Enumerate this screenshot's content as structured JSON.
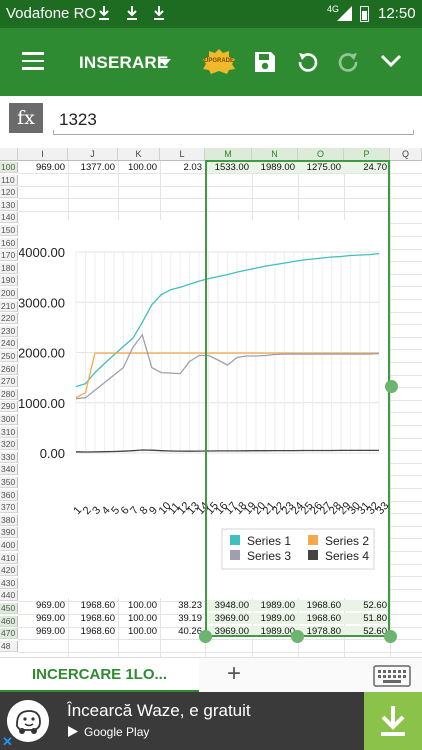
{
  "status_bar": {
    "carrier": "Vodafone RO",
    "network": "4G",
    "time": "12:50"
  },
  "toolbar": {
    "mode_label": "INSERARE",
    "upgrade_label": "UPGRADE"
  },
  "formula_bar": {
    "fx_label": "fx",
    "value": "1323"
  },
  "grid": {
    "columns": [
      "I",
      "J",
      "K",
      "L",
      "M",
      "N",
      "O",
      "P",
      "Q"
    ],
    "rows": [
      "100",
      "110",
      "120",
      "130",
      "140",
      "150",
      "160",
      "170",
      "180",
      "190",
      "200",
      "210",
      "220",
      "230",
      "240",
      "250",
      "260",
      "270",
      "280",
      "290",
      "300",
      "310",
      "320",
      "330",
      "340",
      "350",
      "360",
      "370",
      "380",
      "390",
      "400",
      "410",
      "420",
      "430",
      "440",
      "450",
      "460",
      "470",
      "48"
    ],
    "data_rows": {
      "r100": [
        "969.00",
        "1377.00",
        "100.00",
        "2.03",
        "1533.00",
        "1989.00",
        "1275.00",
        "24.70"
      ],
      "r450": [
        "969.00",
        "1968.60",
        "100.00",
        "38.23",
        "3948.00",
        "1989.00",
        "1968.60",
        "52.60"
      ],
      "r460": [
        "969.00",
        "1968.60",
        "100.00",
        "39.19",
        "3969.00",
        "1989.00",
        "1968.60",
        "51.80"
      ],
      "r470": [
        "969.00",
        "1968.60",
        "100.00",
        "40.26",
        "3969.00",
        "1989.00",
        "1978.80",
        "52.60"
      ]
    }
  },
  "chart_data": {
    "type": "line",
    "y_ticks": [
      "4000.00",
      "3000.00",
      "2000.00",
      "1000.00",
      "0.00"
    ],
    "ylim": [
      0,
      4000
    ],
    "grid": true,
    "legend_position": "bottom-right",
    "x": [
      1,
      2,
      3,
      4,
      5,
      6,
      7,
      8,
      9,
      10,
      11,
      12,
      13,
      14,
      15,
      16,
      17,
      18,
      19,
      20,
      21,
      22,
      23,
      24,
      25,
      26,
      27,
      28,
      29,
      30,
      31,
      32,
      33
    ],
    "x_labels": [
      "1",
      "2",
      "3",
      "4",
      "5",
      "6",
      "7",
      "8",
      "9",
      "10",
      "11",
      "12",
      "13",
      "14",
      "15",
      "16",
      "17",
      "18",
      "19",
      "20",
      "21",
      "22",
      "23",
      "24",
      "25",
      "26",
      "27",
      "28",
      "29",
      "30",
      "31",
      "32",
      "33"
    ],
    "series": [
      {
        "name": "Series 1",
        "color": "#40bfbf",
        "values": [
          1323,
          1380,
          1600,
          1780,
          1950,
          2120,
          2280,
          2600,
          2950,
          3150,
          3250,
          3300,
          3360,
          3420,
          3470,
          3510,
          3550,
          3600,
          3640,
          3680,
          3720,
          3750,
          3780,
          3810,
          3840,
          3860,
          3880,
          3900,
          3910,
          3930,
          3940,
          3948,
          3969
        ]
      },
      {
        "name": "Series 2",
        "color": "#f5a94a",
        "values": [
          1100,
          1200,
          1989,
          1989,
          1989,
          1989,
          1989,
          1989,
          1989,
          1989,
          1989,
          1989,
          1989,
          1989,
          1989,
          1989,
          1989,
          1989,
          1989,
          1989,
          1989,
          1989,
          1989,
          1989,
          1989,
          1989,
          1989,
          1989,
          1989,
          1989,
          1989,
          1989,
          1989
        ]
      },
      {
        "name": "Series 3",
        "color": "#9f9fb0",
        "values": [
          1080,
          1100,
          1250,
          1400,
          1550,
          1700,
          2100,
          2350,
          1700,
          1600,
          1590,
          1580,
          1820,
          1940,
          1940,
          1850,
          1750,
          1900,
          1930,
          1930,
          1940,
          1960,
          1968,
          1968,
          1968,
          1968,
          1968,
          1968,
          1968,
          1968,
          1968,
          1968,
          1978
        ]
      },
      {
        "name": "Series 4",
        "color": "#444444",
        "values": [
          24,
          20,
          22,
          25,
          30,
          35,
          45,
          60,
          55,
          45,
          40,
          38,
          36,
          38,
          40,
          41,
          42,
          42,
          43,
          45,
          46,
          47,
          48,
          48,
          49,
          50,
          50,
          50,
          51,
          51,
          52,
          52,
          52
        ]
      }
    ]
  },
  "sheet_tab": {
    "name": "INCERCARE 1LO..."
  },
  "ad": {
    "title": "Încearcă Waze, e gratuit",
    "store": "Google Play"
  }
}
